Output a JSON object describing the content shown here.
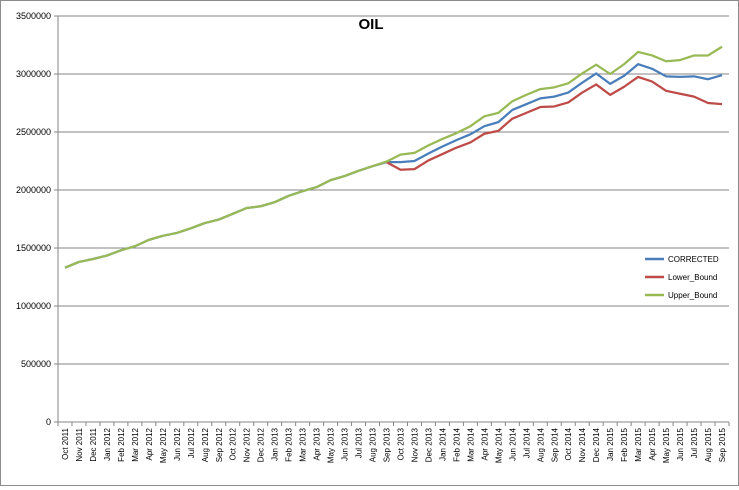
{
  "chart_data": {
    "type": "line",
    "title": "OIL",
    "xlabel": "",
    "ylabel": "",
    "ylim": [
      0,
      3500000
    ],
    "yticks": [
      0,
      500000,
      1000000,
      1500000,
      2000000,
      2500000,
      3000000,
      3500000
    ],
    "ytick_labels": [
      "0",
      "500000",
      "1000000",
      "1500000",
      "2000000",
      "2500000",
      "3000000",
      "3500000"
    ],
    "grid": "horizontal",
    "legend_position": "right",
    "categories": [
      "Oct 2011",
      "Nov 2011",
      "Dec 2011",
      "Jan 2012",
      "Feb 2012",
      "Mar 2012",
      "Apr 2012",
      "May 2012",
      "Jun 2012",
      "Jul 2012",
      "Aug 2012",
      "Sep 2012",
      "Oct 2012",
      "Nov 2012",
      "Dec 2012",
      "Jan 2013",
      "Feb 2013",
      "Mar 2013",
      "Apr 2013",
      "May 2013",
      "Jun 2013",
      "Jul 2013",
      "Aug 2013",
      "Sep 2013",
      "Oct 2013",
      "Nov 2013",
      "Dec 2013",
      "Jan 2014",
      "Feb 2014",
      "Mar 2014",
      "Apr 2014",
      "May 2014",
      "Jun 2014",
      "Jul 2014",
      "Aug 2014",
      "Sep 2014",
      "Oct 2014",
      "Nov 2014",
      "Dec 2014",
      "Jan 2015",
      "Feb 2015",
      "Mar 2015",
      "Apr 2015",
      "May 2015",
      "Jun 2015",
      "Jul 2015",
      "Aug 2015",
      "Sep 2015"
    ],
    "series": [
      {
        "name": "CORRECTED",
        "color": "#4a7ebb",
        "values": [
          1330000,
          1380000,
          1405000,
          1435000,
          1480000,
          1515000,
          1570000,
          1605000,
          1630000,
          1670000,
          1715000,
          1745000,
          1795000,
          1845000,
          1860000,
          1895000,
          1950000,
          1990000,
          2025000,
          2085000,
          2120000,
          2165000,
          2205000,
          2240000,
          2240000,
          2250000,
          2315000,
          2375000,
          2430000,
          2480000,
          2550000,
          2585000,
          2690000,
          2740000,
          2790000,
          2805000,
          2840000,
          2925000,
          3005000,
          2915000,
          2985000,
          3085000,
          3045000,
          2980000,
          2975000,
          2980000,
          2955000,
          2990000
        ]
      },
      {
        "name": "Lower_Bound",
        "color": "#be4b48",
        "values": [
          null,
          null,
          null,
          null,
          null,
          null,
          null,
          null,
          null,
          null,
          null,
          null,
          null,
          null,
          null,
          null,
          null,
          null,
          null,
          null,
          null,
          null,
          null,
          2240000,
          2175000,
          2180000,
          2255000,
          2310000,
          2365000,
          2410000,
          2485000,
          2510000,
          2615000,
          2665000,
          2715000,
          2720000,
          2755000,
          2840000,
          2910000,
          2820000,
          2890000,
          2975000,
          2935000,
          2855000,
          2830000,
          2805000,
          2750000,
          2740000
        ]
      },
      {
        "name": "Upper_Bound",
        "color": "#98b954",
        "values": [
          1330000,
          1380000,
          1405000,
          1435000,
          1480000,
          1515000,
          1570000,
          1605000,
          1630000,
          1670000,
          1715000,
          1745000,
          1795000,
          1845000,
          1860000,
          1895000,
          1950000,
          1990000,
          2025000,
          2085000,
          2120000,
          2165000,
          2205000,
          2245000,
          2305000,
          2320000,
          2385000,
          2440000,
          2490000,
          2550000,
          2635000,
          2665000,
          2765000,
          2820000,
          2870000,
          2885000,
          2920000,
          3005000,
          3080000,
          3000000,
          3085000,
          3190000,
          3160000,
          3110000,
          3120000,
          3160000,
          3160000,
          3235000
        ]
      }
    ]
  }
}
